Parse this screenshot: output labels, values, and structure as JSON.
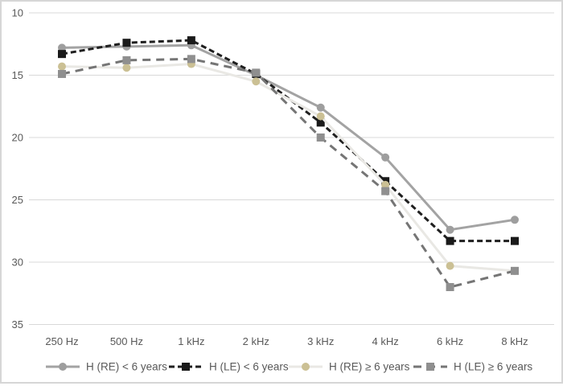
{
  "chart_data": {
    "type": "line",
    "categories": [
      "250 Hz",
      "500 Hz",
      "1 kHz",
      "2 kHz",
      "3 kHz",
      "4 kHz",
      "6 kHz",
      "8 kHz"
    ],
    "series": [
      {
        "name": "H (RE) < 6 years",
        "values": [
          12.8,
          12.7,
          12.6,
          15.0,
          17.6,
          21.6,
          27.4,
          26.6
        ],
        "marker": "circle",
        "line_style": "solid",
        "line_color": "#a3a3a3",
        "marker_color": "#9e9e9e"
      },
      {
        "name": "H (LE) < 6 years",
        "values": [
          13.3,
          12.4,
          12.2,
          14.9,
          18.8,
          23.5,
          28.3,
          28.3
        ],
        "marker": "square",
        "line_style": "dashed",
        "line_color": "#1f1f1f",
        "marker_color": "#1a1a1a"
      },
      {
        "name": "H (RE) ≥ 6 years",
        "values": [
          14.3,
          14.4,
          14.1,
          15.5,
          18.3,
          23.8,
          30.3,
          30.7
        ],
        "marker": "circle",
        "line_style": "solid",
        "line_color": "#e9e8e4",
        "marker_color": "#cbc094"
      },
      {
        "name": "H (LE) ≥ 6 years",
        "values": [
          14.9,
          13.8,
          13.7,
          14.8,
          20.0,
          24.3,
          32.0,
          30.7
        ],
        "marker": "square",
        "line_style": "long-dash",
        "line_color": "#757575",
        "marker_color": "#8f8f8f"
      }
    ],
    "yticks": [
      10,
      15,
      20,
      25,
      30,
      35
    ],
    "ylim": [
      10,
      35
    ],
    "y_axis_inverted": true,
    "grid": true,
    "legend_position": "bottom"
  },
  "colors": {
    "gridline": "#d9d9d9",
    "tick_label": "#595959",
    "legend_label": "#595959",
    "background": "#ffffff",
    "border": "#d6d6d6"
  }
}
